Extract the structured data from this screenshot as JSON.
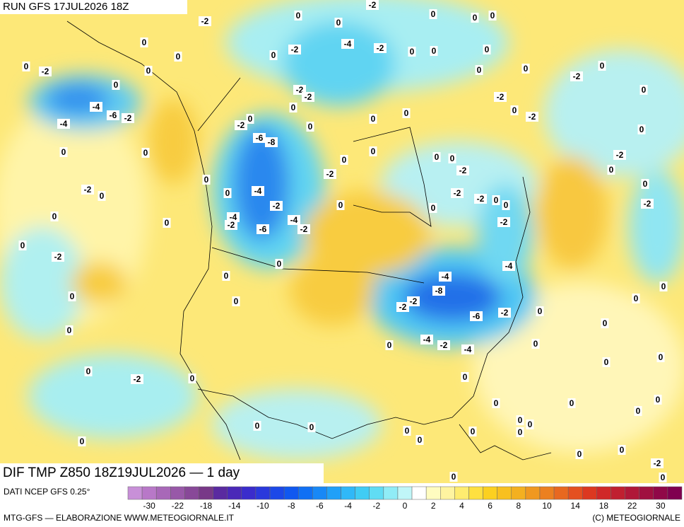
{
  "header": {
    "run": "RUN GFS 17JUL2026 18Z",
    "product": "DIF TMP Z850 18Z19JUL2026 — 1 day"
  },
  "footer": {
    "source": "DATI NCEP GFS 0.25°",
    "credit": "MTG-GFS — ELABORAZIONE WWW.METEOGIORNALE.IT",
    "copyright": "(C) METEOGIORNALE"
  },
  "colorbar": {
    "colors": [
      "#c890d8",
      "#b878c8",
      "#a868b8",
      "#9858a8",
      "#884898",
      "#783888",
      "#5a2aa0",
      "#4a28b8",
      "#3a2ccc",
      "#2a38dc",
      "#1c48e8",
      "#1058f0",
      "#1070f4",
      "#1888f6",
      "#20a0f8",
      "#30b8f8",
      "#40ccf4",
      "#60dcf4",
      "#90ecf6",
      "#c0f6f8",
      "#ffffff",
      "#fffcc0",
      "#fff4a0",
      "#ffec70",
      "#ffe040",
      "#fcd020",
      "#f8c020",
      "#f4b020",
      "#f09820",
      "#ec8020",
      "#e86820",
      "#e45020",
      "#dc3820",
      "#d02828",
      "#c02030",
      "#b01838",
      "#a01040",
      "#900848",
      "#800050"
    ],
    "ticks": [
      "-30",
      "-22",
      "-18",
      "-14",
      "-10",
      "-8",
      "-6",
      "-4",
      "-2",
      "0",
      "2",
      "4",
      "6",
      "8",
      "10",
      "14",
      "18",
      "22",
      "30"
    ]
  },
  "contour_labels": [
    "-2",
    "0",
    "-2",
    "0",
    "0",
    "0",
    "0",
    "0",
    "-2",
    "0",
    "-4",
    "-2",
    "0",
    "0",
    "0",
    "0",
    "-2",
    "0",
    "0",
    "0",
    "0",
    "0",
    "0",
    "-2",
    "0",
    "-2",
    "-2",
    "-2",
    "-4",
    "-6",
    "-2",
    "-4",
    "0",
    "0",
    "0",
    "0",
    "-2",
    "0",
    "-2",
    "0",
    "0",
    "-6",
    "-8",
    "0",
    "0",
    "0",
    "0",
    "0",
    "0",
    "-2",
    "-2",
    "-2",
    "0",
    "0",
    "-2",
    "0",
    "-4",
    "0",
    "-2",
    "-2",
    "0",
    "0",
    "0",
    "-2",
    "0",
    "0",
    "-2",
    "0",
    "-4",
    "-2",
    "-4",
    "-6",
    "-2",
    "0",
    "-2",
    "0",
    "-2",
    "0",
    "-4",
    "0",
    "-4",
    "-8",
    "0",
    "0",
    "-2",
    "-2",
    "0",
    "0",
    "-6",
    "-2",
    "0",
    "0",
    "0",
    "-4",
    "-2",
    "-4",
    "0",
    "0",
    "0",
    "0",
    "0",
    "-2",
    "0",
    "0",
    "0",
    "0",
    "0",
    "0",
    "0",
    "0",
    "0",
    "0",
    "0",
    "0",
    "0",
    "0",
    "0",
    "0",
    "-2",
    "0",
    "0",
    "0"
  ]
}
